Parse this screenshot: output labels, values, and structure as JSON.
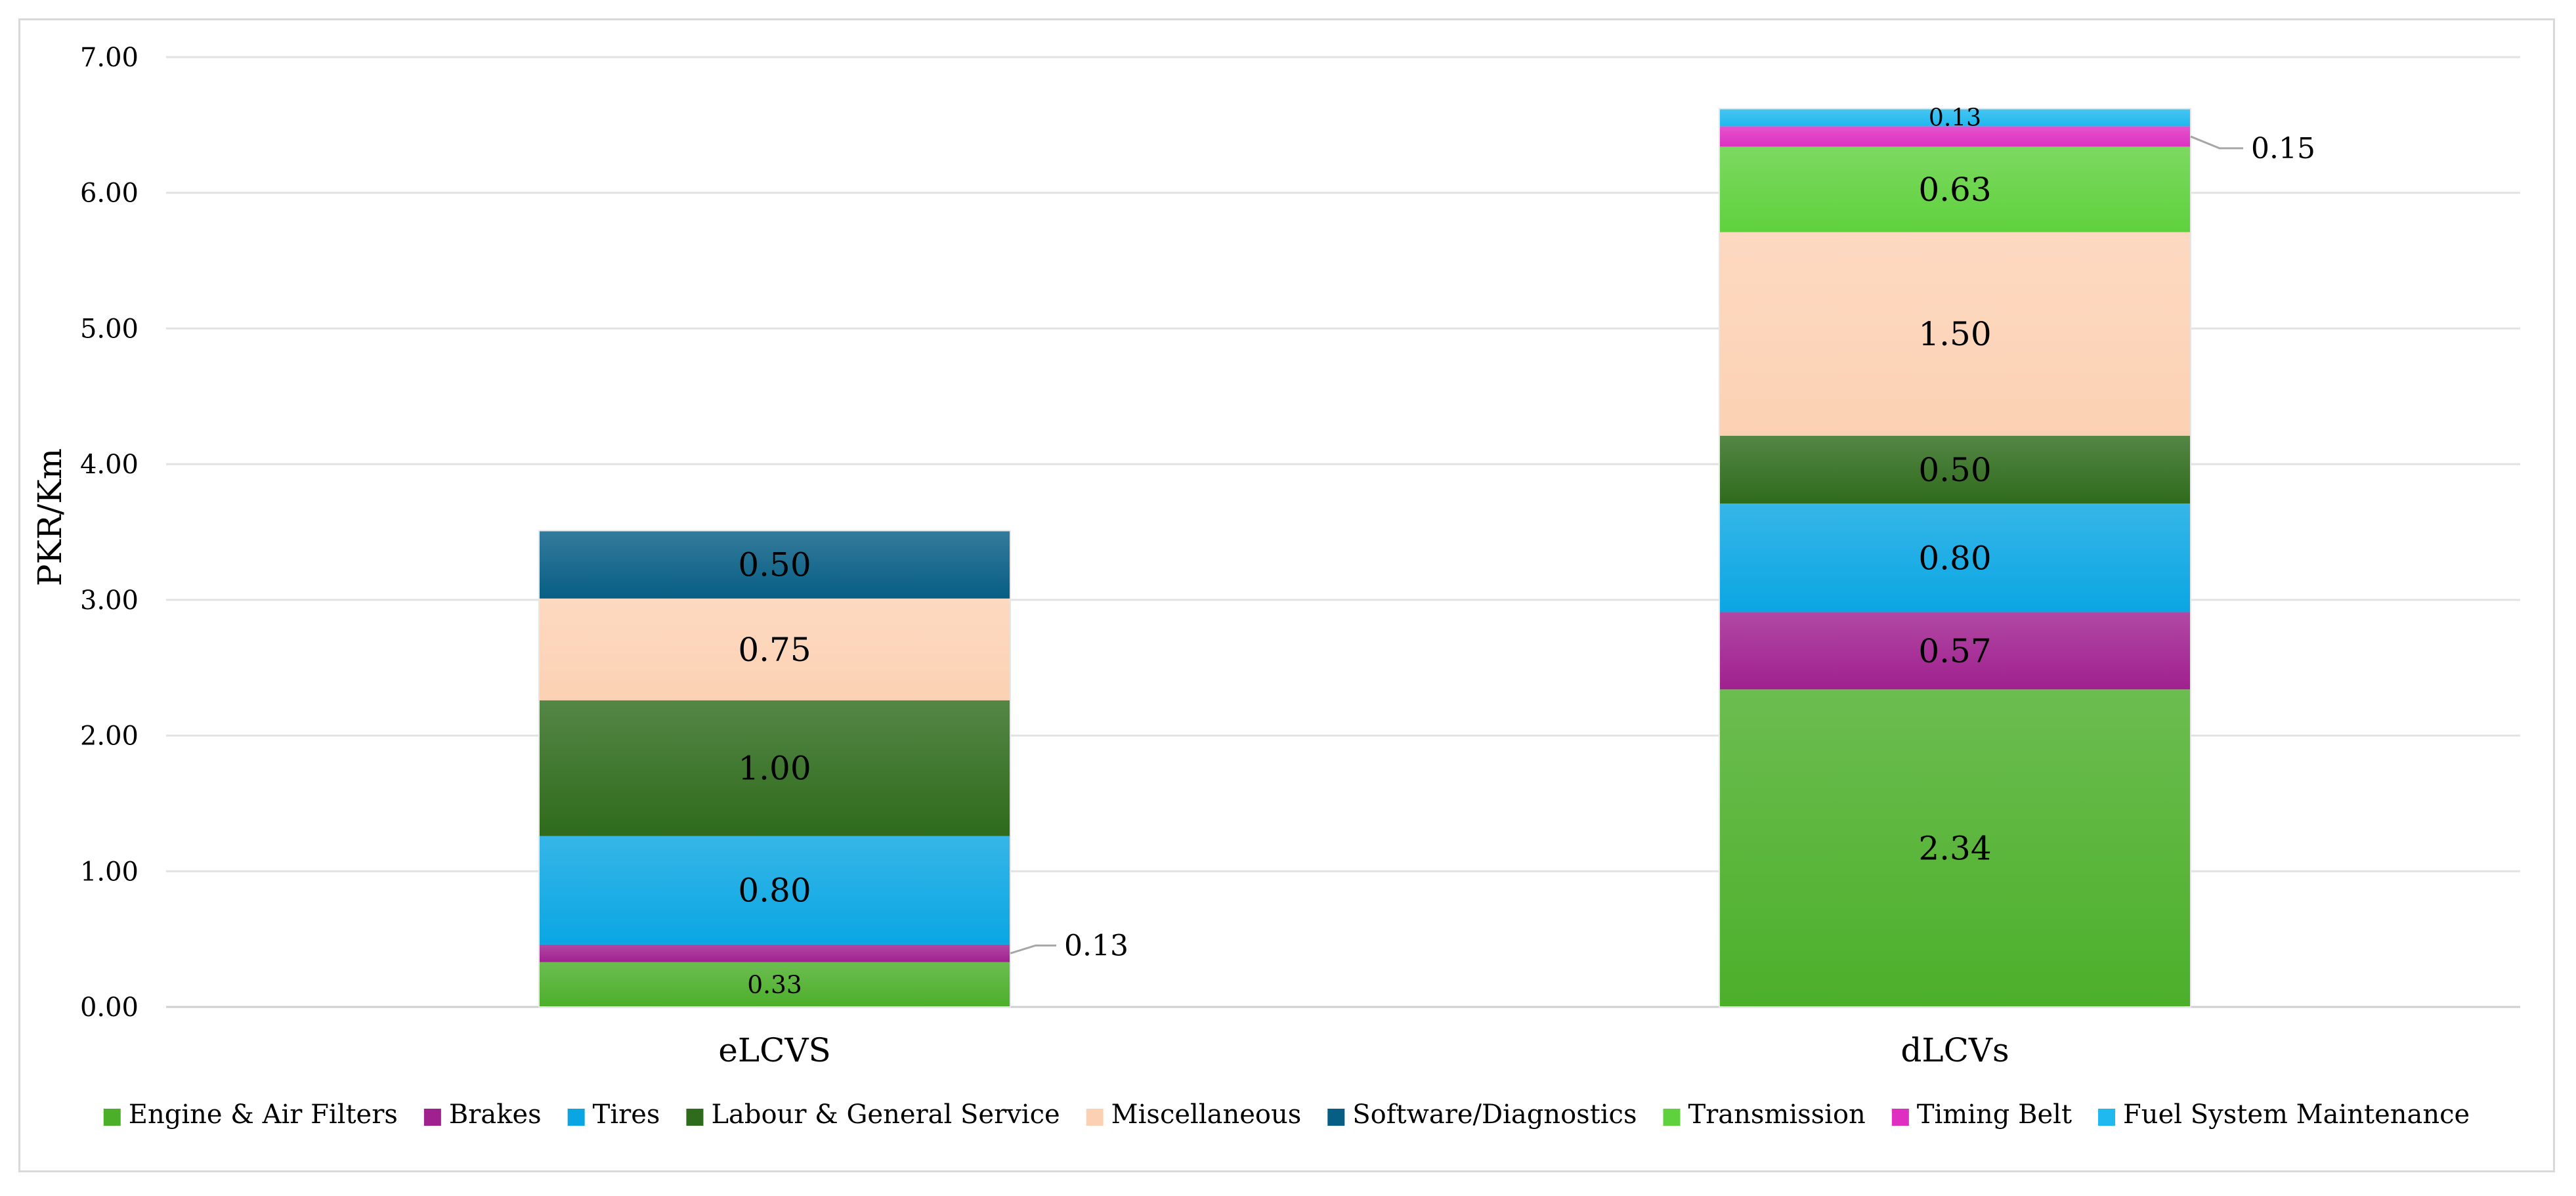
{
  "chart_data": {
    "type": "bar",
    "stacked": true,
    "title": "",
    "xlabel": "",
    "ylabel": "PKR/Km",
    "ylim": [
      0,
      7
    ],
    "yticks": [
      "0.00",
      "1.00",
      "2.00",
      "3.00",
      "4.00",
      "5.00",
      "6.00",
      "7.00"
    ],
    "grid": true,
    "legend_position": "bottom",
    "categories": [
      "eLCVS",
      "dLCVs"
    ],
    "series": [
      {
        "name": "Engine & Air Filters",
        "color": "#4caf2a",
        "values": [
          0.33,
          2.34
        ],
        "labels": [
          "0.33",
          "2.34"
        ]
      },
      {
        "name": "Brakes",
        "color": "#a0208f",
        "values": [
          0.13,
          0.57
        ],
        "labels": [
          "0.13",
          "0.57"
        ]
      },
      {
        "name": "Tires",
        "color": "#0aa6e3",
        "values": [
          0.8,
          0.8
        ],
        "labels": [
          "0.80",
          "0.80"
        ]
      },
      {
        "name": "Labour & General Service",
        "color": "#2f6b1c",
        "values": [
          1.0,
          0.5
        ],
        "labels": [
          "1.00",
          "0.50"
        ]
      },
      {
        "name": "Miscellaneous",
        "color": "#fcd1b3",
        "values": [
          0.75,
          1.5
        ],
        "labels": [
          "0.75",
          "1.50"
        ]
      },
      {
        "name": "Software/Diagnostics",
        "color": "#075e85",
        "values": [
          0.5,
          0
        ],
        "labels": [
          "0.50",
          ""
        ]
      },
      {
        "name": "Transmission",
        "color": "#5fd13d",
        "values": [
          0,
          0.63
        ],
        "labels": [
          "",
          "0.63"
        ]
      },
      {
        "name": "Timing Belt",
        "color": "#de2fc1",
        "values": [
          0,
          0.15
        ],
        "labels": [
          "",
          "0.15"
        ]
      },
      {
        "name": "Fuel System Maintenance",
        "color": "#1fb8ef",
        "values": [
          0,
          0.13
        ],
        "labels": [
          "",
          "0.13"
        ]
      }
    ]
  }
}
